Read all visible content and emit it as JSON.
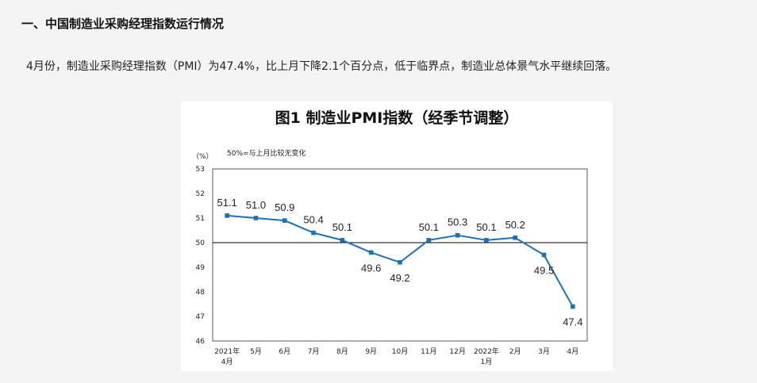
{
  "heading": "一、中国制造业采购经理指数运行情况",
  "paragraph": "4月份，制造业采购经理指数（PMI）为47.4%，比上月下降2.1个百分点，低于临界点，制造业总体景气水平继续回落。",
  "chart_data": {
    "type": "line",
    "title": "图1 制造业PMI指数（经季节调整）",
    "unit_label": "（%）",
    "annotation": "50%=与上月比较无变化",
    "ylim": [
      46,
      53
    ],
    "y_ticks": [
      53,
      52,
      51,
      50,
      49,
      48,
      47,
      46
    ],
    "reference_line": 50,
    "grid": false,
    "categories": [
      {
        "line1": "2021年",
        "line2": "4月"
      },
      {
        "line1": "5月",
        "line2": ""
      },
      {
        "line1": "6月",
        "line2": ""
      },
      {
        "line1": "7月",
        "line2": ""
      },
      {
        "line1": "8月",
        "line2": ""
      },
      {
        "line1": "9月",
        "line2": ""
      },
      {
        "line1": "10月",
        "line2": ""
      },
      {
        "line1": "11月",
        "line2": ""
      },
      {
        "line1": "12月",
        "line2": ""
      },
      {
        "line1": "2022年",
        "line2": "1月"
      },
      {
        "line1": "2月",
        "line2": ""
      },
      {
        "line1": "3月",
        "line2": ""
      },
      {
        "line1": "4月",
        "line2": ""
      }
    ],
    "values": [
      51.1,
      51.0,
      50.9,
      50.4,
      50.1,
      49.6,
      49.2,
      50.1,
      50.3,
      50.1,
      50.2,
      49.5,
      47.4
    ],
    "data_labels": [
      "51.1",
      "51.0",
      "50.9",
      "50.4",
      "50.1",
      "49.6",
      "49.2",
      "50.1",
      "50.3",
      "50.1",
      "50.2",
      "49.5",
      "47.4"
    ],
    "label_positions": [
      "above",
      "above",
      "above",
      "above",
      "above",
      "below",
      "below",
      "above",
      "above",
      "above",
      "above",
      "below",
      "below"
    ],
    "colors": {
      "line": "#1f6fb5",
      "marker": "#1f6fb5",
      "axis": "#333333"
    }
  }
}
